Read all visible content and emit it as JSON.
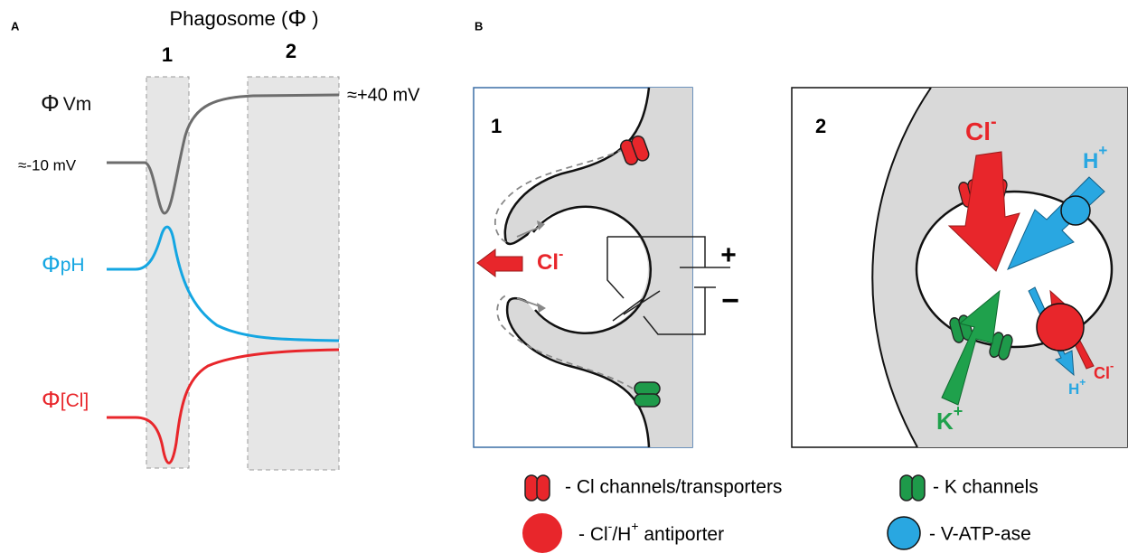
{
  "panel_a": {
    "label": "A",
    "title_parts": [
      "Phagosome (",
      "Φ",
      " )"
    ],
    "stages": [
      "1",
      "2"
    ],
    "traces": [
      {
        "symbol": "Φ",
        "name": "Vm"
      },
      {
        "symbol": "Φ",
        "name": "pH"
      },
      {
        "symbol": "Φ",
        "name": "[Cl]"
      }
    ],
    "annotations": {
      "resting": "≈-10 mV",
      "final": "≈+40 mV"
    }
  },
  "panel_b": {
    "label": "B",
    "stage_1": {
      "label": "1",
      "ion": "Cl",
      "ion_charge": "-",
      "battery_plus": "+",
      "battery_minus": "−"
    },
    "stage_2": {
      "label": "2",
      "cl": "Cl",
      "cl_charge": "-",
      "h": "H",
      "h_charge": "+",
      "k": "K",
      "k_charge": "+",
      "antiporter_cl": "Cl",
      "antiporter_cl_charge": "-",
      "antiporter_h": "H",
      "antiporter_h_charge": "+"
    },
    "legend": {
      "cl_channels": "- Cl channels/transporters",
      "k_channels": "- K channels",
      "antiporter": [
        "- Cl",
        "-",
        "/H",
        "+",
        " antiporter"
      ],
      "v_atpase": "- V-ATP-ase"
    }
  }
}
